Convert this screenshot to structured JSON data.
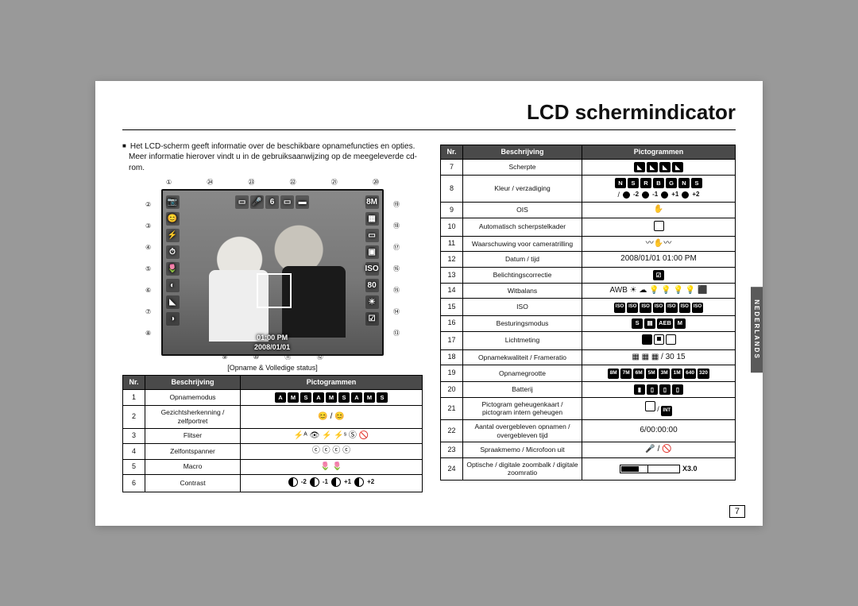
{
  "page": {
    "title": "LCD schermindicator",
    "intro": "Het LCD-scherm geeft informatie over de beschikbare opnamefuncties en opties. Meer informatie hierover vindt u in de gebruiksaanwijzing op de meegeleverde cd-rom.",
    "caption": "[Opname & Volledige status]",
    "page_number": "7",
    "side_tab": "NEDERLANDS"
  },
  "lcd": {
    "time": "01:00 PM",
    "date": "2008/01/01",
    "mp": "8M",
    "count": "6",
    "iso_label": "ISO",
    "iso_val": "80"
  },
  "callouts_top": [
    "①",
    "㉔",
    "㉓",
    "㉒",
    "㉑",
    "⑳"
  ],
  "callouts_left": [
    "②",
    "③",
    "④",
    "⑤",
    "⑥",
    "⑦",
    "⑧"
  ],
  "callouts_right": [
    "⑲",
    "⑱",
    "⑰",
    "⑯",
    "⑮",
    "⑭",
    "⑬"
  ],
  "callouts_bot": [
    "⑨",
    "⑩",
    "⑪",
    "⑫"
  ],
  "table1": {
    "headers": [
      "Nr.",
      "Beschrijving",
      "Pictogrammen"
    ],
    "rows": [
      {
        "nr": "1",
        "desc": "Opnamemodus",
        "picto_type": "boxes",
        "count": 9
      },
      {
        "nr": "2",
        "desc": "Gezichtsherkenning / zelfportret",
        "picto_text": "😊 / 😊"
      },
      {
        "nr": "3",
        "desc": "Flitser",
        "picto_text": "⚡ᴬ 👁 ⚡ ⚡ˢ Ⓢ 🚫"
      },
      {
        "nr": "4",
        "desc": "Zelfontspanner",
        "picto_text": "ⓒ ⓒ ⓒ ⓒ"
      },
      {
        "nr": "5",
        "desc": "Macro",
        "picto_text": "🌷 🌷"
      },
      {
        "nr": "6",
        "desc": "Contrast",
        "picto_type": "contrast"
      }
    ]
  },
  "table2": {
    "headers": [
      "Nr.",
      "Beschrijving",
      "Pictogrammen"
    ],
    "rows": [
      {
        "nr": "7",
        "desc": "Scherpte",
        "picto_type": "sharpness"
      },
      {
        "nr": "8",
        "desc": "Kleur / verzadiging",
        "picto_type": "satboxes"
      },
      {
        "nr": "9",
        "desc": "OIS",
        "picto_text": "✋"
      },
      {
        "nr": "10",
        "desc": "Automatisch scherpstelkader",
        "picto_type": "square"
      },
      {
        "nr": "11",
        "desc": "Waarschuwing voor cameratrilling",
        "picto_text": "〰✋〰"
      },
      {
        "nr": "12",
        "desc": "Datum / tijd",
        "picto_text": "2008/01/01  01:00 PM"
      },
      {
        "nr": "13",
        "desc": "Belichtingscorrectie",
        "picto_type": "expbox"
      },
      {
        "nr": "14",
        "desc": "Witbalans",
        "picto_text": "AWB ☀ ☁ 💡 💡 💡 💡 ⬛"
      },
      {
        "nr": "15",
        "desc": "ISO",
        "picto_type": "iso"
      },
      {
        "nr": "16",
        "desc": "Besturingsmodus",
        "picto_type": "drive"
      },
      {
        "nr": "17",
        "desc": "Lichtmeting",
        "picto_type": "meter"
      },
      {
        "nr": "18",
        "desc": "Opnamekwaliteit / Frameratio",
        "picto_text": "▦ ▦ ▦ / 30 15"
      },
      {
        "nr": "19",
        "desc": "Opnamegrootte",
        "picto_type": "sizes"
      },
      {
        "nr": "20",
        "desc": "Batterij",
        "picto_type": "batt"
      },
      {
        "nr": "21",
        "desc": "Pictogram geheugenkaart / pictogram intern geheugen",
        "picto_type": "card"
      },
      {
        "nr": "22",
        "desc": "Aantal overgebleven opnamen / overgebleven tijd",
        "picto_text": "6/00:00:00"
      },
      {
        "nr": "23",
        "desc": "Spraakmemo / Microfoon uit",
        "picto_text": "🎤 / 🚫"
      },
      {
        "nr": "24",
        "desc": "Optische / digitale zoombalk / digitale zoomratio",
        "picto_type": "zoom",
        "zoom_label": "X3.0"
      }
    ]
  },
  "contrast": {
    "values": [
      "-2",
      "-1",
      "+1",
      "+2"
    ]
  },
  "saturation": {
    "values": [
      "-2",
      "-1",
      "+1",
      "+2"
    ]
  }
}
